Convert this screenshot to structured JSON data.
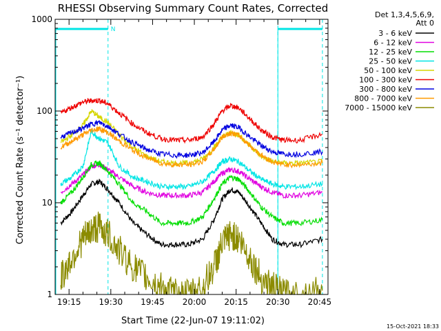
{
  "chart_data": {
    "type": "line",
    "title": "RHESSI Observing Summary Count Rates, Corrected",
    "xlabel": "Start Time (22-Jun-07 19:11:02)",
    "ylabel": "Corrected Count Rate (s⁻¹ detector⁻¹)",
    "y_scale": "log",
    "ylim": [
      1,
      1000
    ],
    "xlim": [
      "19:10",
      "20:48"
    ],
    "x_ticks": [
      "19:15",
      "19:30",
      "19:45",
      "20:00",
      "20:15",
      "20:30",
      "20:45"
    ],
    "y_ticks": [
      "1",
      "10",
      "100",
      "1000"
    ],
    "grid": false,
    "legend_position": "top-right",
    "legend_header": [
      "Det 1,3,4,5,6,9,",
      "Att 0"
    ],
    "footer_date": "15-Oct-2021 18:33",
    "annotations": {
      "night_flag_label": "N",
      "night_intervals": [
        [
          "19:10",
          "19:29"
        ],
        [
          "20:30",
          "20:46"
        ]
      ],
      "dashed_markers": [
        "19:29",
        "20:30",
        "20:46"
      ],
      "color": "#00e5e5"
    },
    "x": [
      "19:12",
      "19:16",
      "19:20",
      "19:23",
      "19:26",
      "19:29",
      "19:33",
      "19:38",
      "19:43",
      "19:48",
      "19:53",
      "19:58",
      "20:03",
      "20:07",
      "20:10",
      "20:13",
      "20:16",
      "20:20",
      "20:24",
      "20:28",
      "20:32",
      "20:38",
      "20:46"
    ],
    "series": [
      {
        "name": "3 - 6 keV",
        "color": "#000000",
        "values": [
          6,
          8,
          12,
          16,
          17,
          14,
          10,
          6,
          4.5,
          3.5,
          3.5,
          3.5,
          4,
          6.5,
          11,
          14,
          13,
          9,
          6,
          4,
          3.5,
          3.5,
          4
        ]
      },
      {
        "name": "6 - 12 keV",
        "color": "#e000e0",
        "values": [
          13,
          16,
          20,
          25,
          26,
          23,
          19,
          15,
          13,
          12,
          12,
          12,
          13,
          17,
          21,
          23,
          22,
          18,
          15,
          13,
          12,
          12,
          13
        ]
      },
      {
        "name": "12 - 25 keV",
        "color": "#00dd00",
        "values": [
          10,
          13,
          19,
          26,
          27,
          22,
          16,
          10,
          8,
          6,
          6,
          6,
          7,
          11,
          16,
          19,
          18,
          13,
          9,
          7,
          6,
          6,
          6.5
        ]
      },
      {
        "name": "25 - 50 keV",
        "color": "#00e5e5",
        "values": [
          16,
          19,
          25,
          60,
          50,
          45,
          25,
          19,
          17,
          15,
          15,
          15,
          17,
          22,
          28,
          30,
          28,
          22,
          18,
          16,
          15,
          15,
          16
        ]
      },
      {
        "name": "50 - 100 keV",
        "color": "#d6d600",
        "values": [
          45,
          55,
          70,
          100,
          85,
          75,
          55,
          40,
          32,
          28,
          27,
          27,
          30,
          40,
          52,
          58,
          55,
          42,
          32,
          28,
          27,
          27,
          28
        ]
      },
      {
        "name": "100 - 300 keV",
        "color": "#ee0000",
        "values": [
          95,
          110,
          125,
          130,
          130,
          120,
          95,
          72,
          58,
          50,
          48,
          48,
          52,
          72,
          100,
          115,
          108,
          82,
          62,
          52,
          48,
          48,
          56
        ]
      },
      {
        "name": "300 - 800 keV",
        "color": "#0000e0",
        "values": [
          52,
          58,
          65,
          72,
          75,
          68,
          56,
          45,
          38,
          34,
          33,
          33,
          35,
          46,
          62,
          70,
          66,
          52,
          42,
          36,
          34,
          34,
          36
        ]
      },
      {
        "name": "800 - 7000 keV",
        "color": "#ff9900",
        "values": [
          40,
          47,
          55,
          62,
          64,
          58,
          47,
          37,
          31,
          27,
          26,
          26,
          28,
          38,
          52,
          58,
          54,
          42,
          33,
          28,
          26,
          26,
          27
        ]
      },
      {
        "name": "7000 - 15000 keV",
        "color": "#8b8b00",
        "values": [
          1.5,
          2.5,
          4,
          5,
          5.5,
          4.5,
          3,
          2,
          1.5,
          1.2,
          1,
          1,
          1.2,
          2,
          3.5,
          4.5,
          4,
          2.5,
          1.5,
          1.2,
          1,
          1,
          1.1
        ]
      }
    ]
  }
}
